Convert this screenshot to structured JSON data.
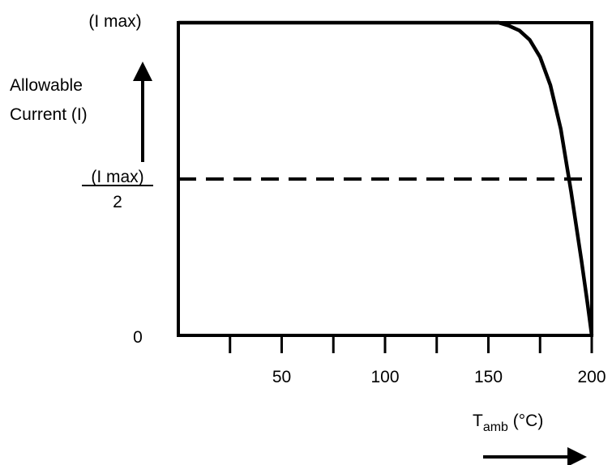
{
  "chart_data": {
    "type": "line",
    "x_ticks": [
      25,
      50,
      75,
      100,
      125,
      150,
      175,
      200
    ],
    "x_tick_labels": [
      {
        "x": 50,
        "label": "50"
      },
      {
        "x": 100,
        "label": "100"
      },
      {
        "x": 150,
        "label": "150"
      },
      {
        "x": 200,
        "label": "200"
      }
    ],
    "xlim": [
      0,
      200
    ],
    "ylim": [
      0,
      1
    ],
    "y_labels": {
      "max": "(I max)",
      "half_numerator": "(I max)",
      "half_denominator": "2",
      "zero": "0"
    },
    "ylabel_lines": [
      "Allowable",
      "Current (I)"
    ],
    "xlabel": {
      "main": "T",
      "sub": "amb",
      "unit": " (°C)"
    },
    "reference_line": {
      "y": 0.5,
      "style": "dashed"
    },
    "series": [
      {
        "x": [
          0,
          155,
          160,
          165,
          170,
          175,
          180,
          185,
          190,
          195,
          198,
          200
        ],
        "y": [
          1.0,
          1.0,
          0.99,
          0.975,
          0.945,
          0.89,
          0.8,
          0.66,
          0.46,
          0.24,
          0.1,
          0.0
        ]
      }
    ]
  }
}
